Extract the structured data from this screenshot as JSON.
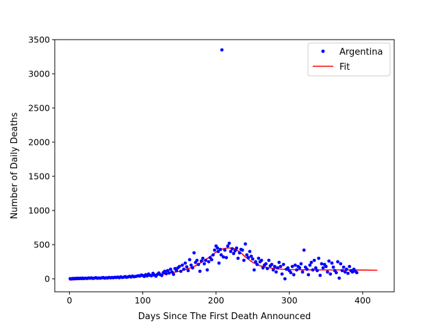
{
  "chart_data": {
    "type": "scatter",
    "title": "",
    "xlabel": "Days Since The First Death Announced",
    "ylabel": "Number of Daily Deaths",
    "xlim": [
      -20,
      443
    ],
    "ylim": [
      -190,
      3500
    ],
    "xticks": [
      0,
      100,
      200,
      300,
      400
    ],
    "yticks": [
      0,
      500,
      1000,
      1500,
      2000,
      2500,
      3000,
      3500
    ],
    "grid": false,
    "legend_position": "top-right",
    "colors": {
      "points": "#0000ff",
      "fit": "#ff0000"
    },
    "series": [
      {
        "name": "Argentina",
        "kind": "points",
        "x": [
          1,
          3,
          4,
          5,
          6,
          7,
          8,
          9,
          10,
          11,
          12,
          13,
          14,
          15,
          16,
          17,
          18,
          19,
          20,
          22,
          24,
          26,
          28,
          30,
          32,
          34,
          36,
          38,
          40,
          42,
          44,
          46,
          48,
          50,
          52,
          54,
          56,
          58,
          60,
          62,
          64,
          66,
          68,
          70,
          72,
          74,
          76,
          78,
          80,
          82,
          84,
          86,
          88,
          90,
          92,
          94,
          96,
          98,
          100,
          102,
          104,
          106,
          108,
          110,
          112,
          114,
          116,
          118,
          120,
          122,
          124,
          126,
          128,
          130,
          132,
          134,
          136,
          138,
          140,
          142,
          144,
          146,
          148,
          150,
          152,
          154,
          156,
          158,
          160,
          162,
          164,
          166,
          168,
          170,
          172,
          174,
          176,
          178,
          180,
          182,
          184,
          186,
          188,
          190,
          192,
          194,
          196,
          198,
          200,
          202,
          203,
          204,
          206,
          207,
          208,
          210,
          212,
          214,
          216,
          218,
          220,
          222,
          224,
          226,
          228,
          230,
          232,
          234,
          236,
          238,
          240,
          242,
          244,
          246,
          248,
          250,
          252,
          254,
          256,
          258,
          260,
          262,
          264,
          266,
          268,
          270,
          272,
          274,
          276,
          278,
          280,
          282,
          284,
          286,
          288,
          290,
          292,
          294,
          296,
          298,
          300,
          302,
          304,
          306,
          308,
          310,
          312,
          314,
          316,
          318,
          320,
          322,
          324,
          326,
          328,
          330,
          332,
          334,
          336,
          338,
          340,
          342,
          344,
          346,
          348,
          350,
          352,
          354,
          356,
          358,
          360,
          362,
          364,
          366,
          368,
          370,
          372,
          374,
          376,
          378,
          380,
          382,
          384,
          386,
          388,
          390,
          392
        ],
        "y": [
          2,
          0,
          1,
          5,
          3,
          2,
          4,
          6,
          2,
          8,
          5,
          3,
          6,
          9,
          4,
          7,
          10,
          3,
          6,
          8,
          5,
          12,
          8,
          14,
          6,
          10,
          16,
          8,
          12,
          9,
          14,
          18,
          10,
          15,
          12,
          20,
          14,
          18,
          16,
          22,
          18,
          25,
          16,
          28,
          20,
          24,
          32,
          22,
          28,
          36,
          26,
          40,
          30,
          34,
          38,
          45,
          40,
          55,
          48,
          35,
          60,
          42,
          70,
          50,
          45,
          80,
          55,
          38,
          65,
          85,
          60,
          48,
          90,
          110,
          75,
          120,
          85,
          140,
          100,
          65,
          150,
          120,
          160,
          180,
          110,
          200,
          140,
          230,
          175,
          120,
          280,
          200,
          160,
          380,
          240,
          270,
          210,
          110,
          260,
          300,
          220,
          270,
          130,
          250,
          310,
          280,
          350,
          420,
          480,
          450,
          400,
          230,
          430,
          350,
          3350,
          320,
          420,
          310,
          480,
          520,
          400,
          440,
          370,
          410,
          450,
          300,
          380,
          430,
          420,
          270,
          510,
          350,
          310,
          400,
          330,
          290,
          130,
          250,
          210,
          300,
          250,
          270,
          160,
          200,
          220,
          150,
          270,
          190,
          210,
          130,
          180,
          100,
          160,
          240,
          180,
          70,
          210,
          0,
          140,
          160,
          120,
          90,
          180,
          60,
          200,
          130,
          180,
          160,
          220,
          100,
          420,
          170,
          140,
          60,
          200,
          240,
          130,
          270,
          160,
          120,
          300,
          50,
          220,
          160,
          210,
          180,
          100,
          260,
          70,
          230,
          170,
          120,
          90,
          250,
          10,
          220,
          120,
          170,
          100,
          140,
          80,
          180,
          120,
          100,
          140,
          110,
          90
        ]
      },
      {
        "name": "Fit",
        "kind": "line",
        "x": [
          0,
          20,
          40,
          60,
          80,
          100,
          110,
          120,
          130,
          140,
          150,
          160,
          170,
          180,
          190,
          195,
          200,
          205,
          210,
          215,
          220,
          225,
          230,
          235,
          240,
          250,
          260,
          270,
          280,
          290,
          300,
          310,
          320,
          340,
          360,
          380,
          400,
          420
        ],
        "y": [
          -20,
          -5,
          5,
          15,
          28,
          40,
          45,
          55,
          70,
          90,
          110,
          140,
          180,
          240,
          310,
          350,
          390,
          420,
          440,
          450,
          450,
          440,
          410,
          370,
          320,
          240,
          190,
          165,
          150,
          140,
          135,
          133,
          132,
          130,
          130,
          130,
          128,
          125
        ]
      }
    ]
  }
}
